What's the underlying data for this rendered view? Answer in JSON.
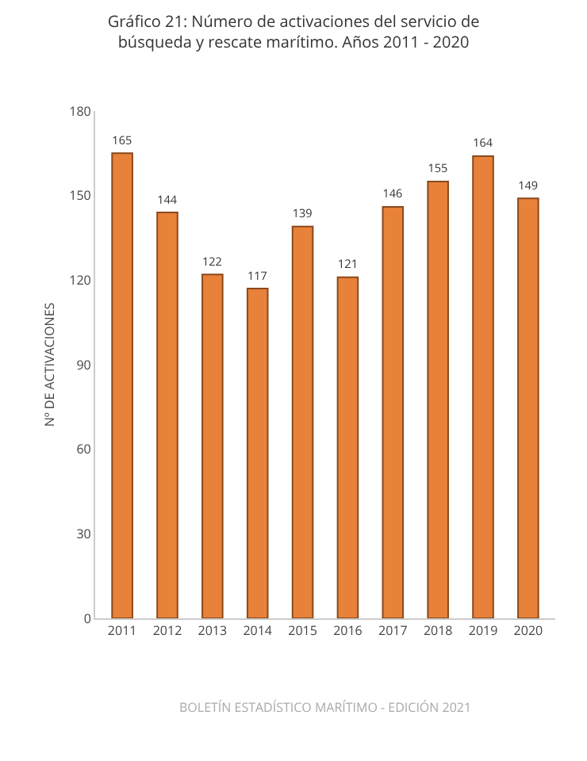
{
  "chart_data": {
    "type": "bar",
    "title": "Gráfico 21: Número de activaciones del servicio de búsqueda y rescate marítimo. Años 2011 - 2020",
    "ylabel": "Nº DE ACTIVACIONES",
    "categories": [
      "2011",
      "2012",
      "2013",
      "2014",
      "2015",
      "2016",
      "2017",
      "2018",
      "2019",
      "2020"
    ],
    "values": [
      165,
      144,
      122,
      117,
      139,
      121,
      146,
      155,
      164,
      149
    ],
    "color": "#e8813a",
    "ylim": [
      0,
      180
    ],
    "yticks": [
      0,
      30,
      60,
      90,
      120,
      150,
      180
    ],
    "grid": false,
    "data_labels": true,
    "annotations": [
      "BOLETÍN ESTADÍSTICO MARÍTIMO - EDICIÓN 2021"
    ]
  }
}
